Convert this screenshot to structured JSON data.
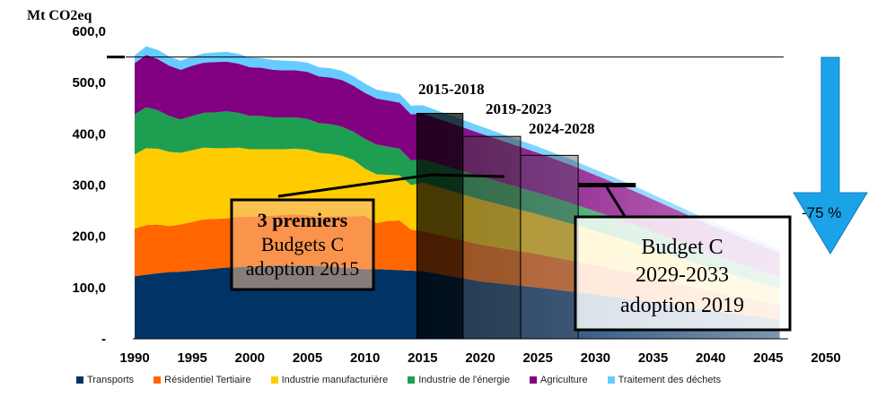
{
  "chart_data": {
    "type": "area",
    "ylabel": "Mt CO2eq",
    "yticks": [
      "-",
      "100,0",
      "200,0",
      "300,0",
      "400,0",
      "500,0",
      "600,0"
    ],
    "ylim": [
      0,
      600
    ],
    "xlim": [
      1990,
      2050
    ],
    "xticks": [
      "1990",
      "1995",
      "2000",
      "2005",
      "2010",
      "2015",
      "2020",
      "2025",
      "2030",
      "2035",
      "2040",
      "2045",
      "2050"
    ],
    "reference_level": 550,
    "x": [
      1990,
      1991,
      1992,
      1993,
      1994,
      1995,
      1996,
      1997,
      1998,
      1999,
      2000,
      2001,
      2002,
      2003,
      2004,
      2005,
      2006,
      2007,
      2008,
      2009,
      2010,
      2011,
      2012,
      2013,
      2014,
      2015,
      2020,
      2025,
      2028,
      2033,
      2040,
      2046
    ],
    "series": [
      {
        "name": "Transports",
        "color": "#003366",
        "values": [
          122,
          125,
          128,
          130,
          131,
          133,
          135,
          137,
          139,
          140,
          141,
          142,
          143,
          143,
          143,
          143,
          142,
          141,
          139,
          137,
          136,
          136,
          135,
          134,
          133,
          132,
          112,
          100,
          92,
          78,
          55,
          38
        ]
      },
      {
        "name": "Résidentiel Tertiaire",
        "color": "#ff6600",
        "values": [
          93,
          97,
          95,
          90,
          92,
          95,
          98,
          97,
          96,
          98,
          97,
          98,
          97,
          99,
          100,
          98,
          96,
          98,
          100,
          102,
          104,
          90,
          95,
          97,
          80,
          78,
          72,
          65,
          60,
          52,
          38,
          28
        ]
      },
      {
        "name": "Industrie manufacturière",
        "color": "#ffcc00",
        "values": [
          145,
          150,
          148,
          145,
          140,
          140,
          140,
          138,
          137,
          135,
          132,
          130,
          130,
          128,
          128,
          128,
          125,
          122,
          118,
          110,
          92,
          95,
          90,
          88,
          87,
          95,
          88,
          78,
          72,
          60,
          45,
          32
        ]
      },
      {
        "name": "Industrie de l'énergie",
        "color": "#1e9e50",
        "values": [
          78,
          80,
          75,
          70,
          65,
          67,
          68,
          70,
          72,
          68,
          65,
          65,
          62,
          62,
          61,
          60,
          58,
          58,
          57,
          55,
          58,
          58,
          55,
          52,
          48,
          45,
          45,
          42,
          40,
          36,
          28,
          22
        ]
      },
      {
        "name": "Agriculture",
        "color": "#800080",
        "values": [
          100,
          102,
          100,
          98,
          97,
          98,
          98,
          98,
          97,
          96,
          95,
          94,
          93,
          92,
          92,
          92,
          91,
          91,
          91,
          90,
          90,
          90,
          90,
          90,
          90,
          90,
          84,
          78,
          74,
          66,
          56,
          48
        ]
      },
      {
        "name": "Traitement des déchets",
        "color": "#66ccff",
        "values": [
          15,
          17,
          18,
          18,
          18,
          18,
          18,
          19,
          19,
          19,
          19,
          19,
          19,
          19,
          18,
          18,
          18,
          18,
          18,
          18,
          18,
          17,
          17,
          17,
          17,
          16,
          14,
          12,
          11,
          10,
          8,
          7
        ]
      }
    ],
    "budgets": [
      {
        "label": "2015-2018",
        "start": 2015,
        "end": 2018,
        "level": 440
      },
      {
        "label": "2019-2023",
        "start": 2019,
        "end": 2023,
        "level": 395
      },
      {
        "label": "2024-2028",
        "start": 2024,
        "end": 2028,
        "level": 358
      }
    ],
    "budget_marker": {
      "start": 2029,
      "end": 2033,
      "level": 300
    },
    "annotation_first": {
      "line1": "3 premiers",
      "line2": "Budgets C",
      "line3": "adoption 2015"
    },
    "annotation_next": {
      "line1": "Budget C",
      "line2": "2029-2033",
      "line3": "adoption 2019"
    },
    "reduction_label": "-75 %"
  }
}
